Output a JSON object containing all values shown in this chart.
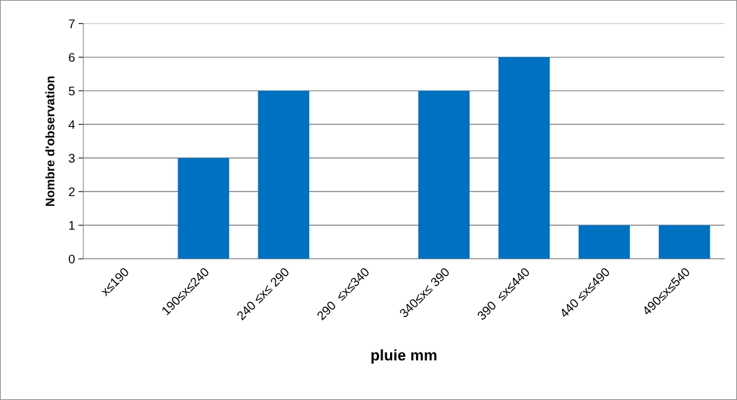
{
  "chart_data": {
    "type": "bar",
    "xlabel": "pluie mm",
    "ylabel": "Nombre d'observation",
    "categories": [
      "x≤190",
      "190≤x≤240",
      "240 ≤x≤ 290",
      "290  ≤x≤340",
      "340≤x≤ 390",
      "390  ≤x≤440",
      "440 ≤x≤490",
      "490≤x≤540"
    ],
    "values": [
      0,
      3,
      5,
      0,
      5,
      6,
      1,
      1
    ],
    "color": "#0070c0",
    "ylim": [
      0,
      7
    ],
    "yticks": [
      0,
      1,
      2,
      3,
      4,
      5,
      6,
      7
    ],
    "grid": "y",
    "legend": false
  }
}
